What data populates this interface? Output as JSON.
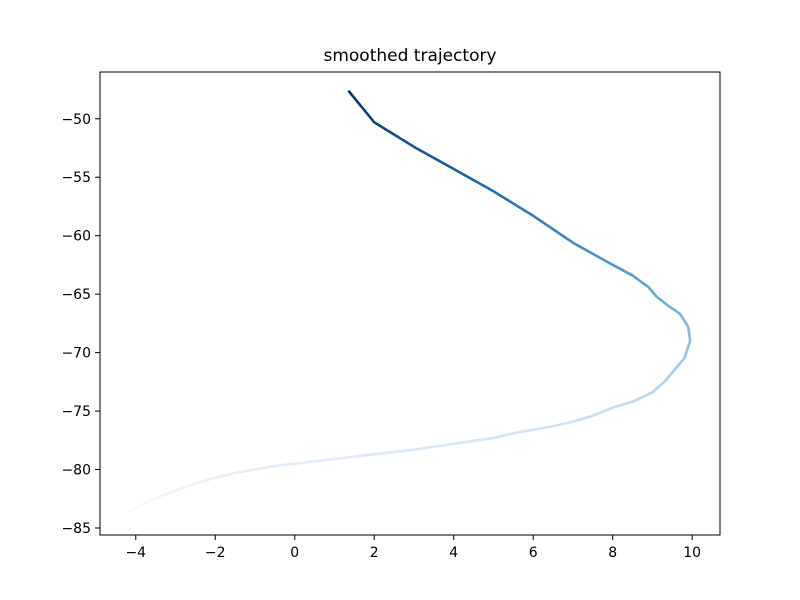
{
  "chart_data": {
    "type": "line",
    "title": "smoothed trajectory",
    "xlabel": "",
    "ylabel": "",
    "xlim": [
      -4.9,
      10.7
    ],
    "ylim": [
      -85.6,
      -46.0
    ],
    "grid": false,
    "legend": "none",
    "colormap": "Blues",
    "color_direction": "light at start, dark at end",
    "x_ticks": [
      -4,
      -2,
      0,
      2,
      4,
      6,
      8,
      10
    ],
    "x_tick_labels": [
      "−4",
      "−2",
      "0",
      "2",
      "4",
      "6",
      "8",
      "10"
    ],
    "y_ticks": [
      -85,
      -80,
      -75,
      -70,
      -65,
      -60,
      -55,
      -50
    ],
    "y_tick_labels": [
      "−85",
      "−80",
      "−75",
      "−70",
      "−65",
      "−60",
      "−55",
      "−50"
    ],
    "series": [
      {
        "x": [
          -4.2,
          -3.6,
          -3.0,
          -2.5,
          -2.0,
          -1.5,
          -1.0,
          -0.5,
          0.0,
          0.5,
          1.0,
          2.0,
          3.0,
          4.0,
          5.0,
          5.5,
          6.0,
          6.5,
          7.0,
          7.5,
          8.0,
          8.5,
          9.0,
          9.3,
          9.6,
          9.8,
          9.95,
          9.9,
          9.7,
          9.4,
          9.1,
          8.9,
          8.5,
          8.0,
          7.0,
          6.0,
          5.0,
          4.0,
          3.0,
          2.0,
          1.35
        ],
        "y": [
          -83.6,
          -82.6,
          -81.8,
          -81.2,
          -80.7,
          -80.3,
          -80.0,
          -79.7,
          -79.5,
          -79.3,
          -79.1,
          -78.7,
          -78.3,
          -77.8,
          -77.3,
          -76.9,
          -76.6,
          -76.3,
          -75.9,
          -75.4,
          -74.7,
          -74.2,
          -73.4,
          -72.5,
          -71.3,
          -70.5,
          -69.0,
          -67.8,
          -66.7,
          -66.0,
          -65.2,
          -64.4,
          -63.4,
          -62.5,
          -60.6,
          -58.3,
          -56.2,
          -54.3,
          -52.4,
          -50.3,
          -47.6
        ]
      }
    ]
  }
}
